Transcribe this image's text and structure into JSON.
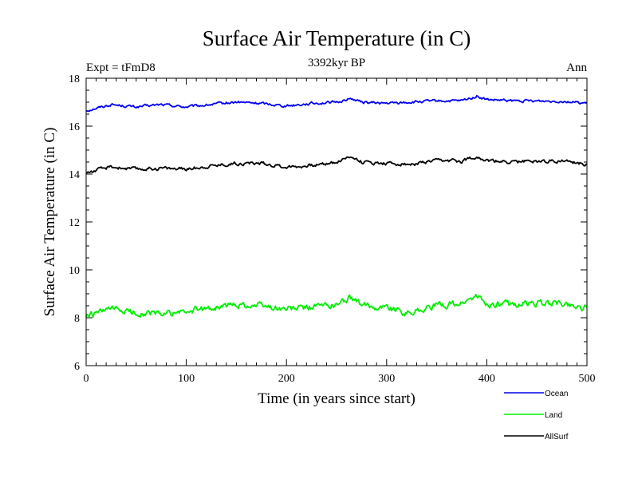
{
  "chart_data": {
    "type": "line",
    "title": "Surface Air Temperature (in C)",
    "subtitle": "3392kyr BP",
    "annotation_left": "Expt = tFmD8",
    "annotation_right": "Ann",
    "xlabel": "Time (in years since start)",
    "ylabel": "Surface Air Temperature (in C)",
    "xlim": [
      0,
      500
    ],
    "ylim": [
      6,
      18
    ],
    "xticks": [
      0,
      100,
      200,
      300,
      400,
      500
    ],
    "yticks": [
      6,
      8,
      10,
      12,
      14,
      16,
      18
    ],
    "grid": false,
    "legend_position": "bottom-right",
    "series": [
      {
        "name": "Ocean",
        "color": "#0000ee",
        "x": [
          0,
          25,
          50,
          75,
          100,
          125,
          150,
          175,
          200,
          225,
          250,
          265,
          275,
          300,
          325,
          350,
          375,
          390,
          400,
          425,
          450,
          475,
          500
        ],
        "values": [
          16.65,
          16.9,
          16.8,
          16.9,
          16.8,
          16.9,
          17.0,
          16.95,
          16.85,
          16.95,
          17.0,
          17.15,
          17.0,
          16.95,
          17.0,
          17.05,
          17.05,
          17.25,
          17.1,
          17.05,
          17.05,
          17.05,
          16.95
        ]
      },
      {
        "name": "Land",
        "color": "#00ee00",
        "x": [
          0,
          25,
          50,
          75,
          100,
          125,
          150,
          175,
          200,
          225,
          250,
          265,
          275,
          300,
          320,
          350,
          375,
          390,
          400,
          425,
          450,
          475,
          500
        ],
        "values": [
          8.05,
          8.35,
          8.2,
          8.15,
          8.25,
          8.4,
          8.55,
          8.5,
          8.35,
          8.45,
          8.55,
          8.85,
          8.5,
          8.45,
          8.2,
          8.5,
          8.6,
          8.9,
          8.55,
          8.55,
          8.6,
          8.6,
          8.4
        ]
      },
      {
        "name": "AllSurf",
        "color": "#000000",
        "x": [
          0,
          25,
          50,
          75,
          100,
          125,
          150,
          175,
          200,
          225,
          250,
          265,
          275,
          300,
          325,
          350,
          375,
          390,
          400,
          425,
          450,
          475,
          500
        ],
        "values": [
          14.05,
          14.3,
          14.2,
          14.25,
          14.2,
          14.35,
          14.45,
          14.45,
          14.3,
          14.35,
          14.5,
          14.75,
          14.5,
          14.45,
          14.4,
          14.55,
          14.55,
          14.75,
          14.55,
          14.5,
          14.55,
          14.55,
          14.4
        ]
      }
    ]
  }
}
